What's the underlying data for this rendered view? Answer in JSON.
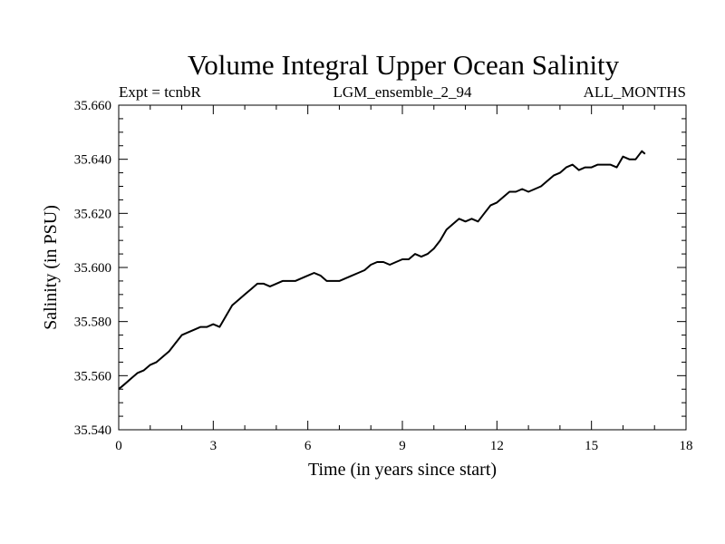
{
  "chart_data": {
    "type": "line",
    "title": "Volume Integral Upper Ocean Salinity",
    "subtitle_left": "Expt = tcnbR",
    "subtitle_center": "LGM_ensemble_2_94",
    "subtitle_right": "ALL_MONTHS",
    "xlabel": "Time (in years since start)",
    "ylabel": "Salinity (in PSU)",
    "xlim": [
      0,
      18
    ],
    "ylim": [
      35.54,
      35.66
    ],
    "xticks": [
      0,
      3,
      6,
      9,
      12,
      15,
      18
    ],
    "yticks": [
      35.54,
      35.56,
      35.58,
      35.6,
      35.62,
      35.64,
      35.66
    ],
    "xtick_labels": [
      "0",
      "3",
      "6",
      "9",
      "12",
      "15",
      "18"
    ],
    "ytick_labels": [
      "35.540",
      "35.560",
      "35.580",
      "35.600",
      "35.620",
      "35.640",
      "35.660"
    ],
    "series": [
      {
        "name": "Salinity",
        "x": [
          0.0,
          0.2,
          0.4,
          0.6,
          0.8,
          1.0,
          1.2,
          1.4,
          1.6,
          1.8,
          2.0,
          2.2,
          2.4,
          2.6,
          2.8,
          3.0,
          3.2,
          3.4,
          3.6,
          3.8,
          4.0,
          4.2,
          4.4,
          4.6,
          4.8,
          5.0,
          5.2,
          5.4,
          5.6,
          5.8,
          6.0,
          6.2,
          6.4,
          6.6,
          6.8,
          7.0,
          7.2,
          7.4,
          7.6,
          7.8,
          8.0,
          8.2,
          8.4,
          8.6,
          8.8,
          9.0,
          9.2,
          9.4,
          9.6,
          9.8,
          10.0,
          10.2,
          10.4,
          10.6,
          10.8,
          11.0,
          11.2,
          11.4,
          11.6,
          11.8,
          12.0,
          12.2,
          12.4,
          12.6,
          12.8,
          13.0,
          13.2,
          13.4,
          13.6,
          13.8,
          14.0,
          14.2,
          14.4,
          14.6,
          14.8,
          15.0,
          15.2,
          15.4,
          15.6,
          15.8,
          16.0,
          16.2,
          16.4,
          16.6,
          16.7
        ],
        "values": [
          35.555,
          35.557,
          35.559,
          35.561,
          35.562,
          35.564,
          35.565,
          35.567,
          35.569,
          35.572,
          35.575,
          35.576,
          35.577,
          35.578,
          35.578,
          35.579,
          35.578,
          35.582,
          35.586,
          35.588,
          35.59,
          35.592,
          35.594,
          35.594,
          35.593,
          35.594,
          35.595,
          35.595,
          35.595,
          35.596,
          35.597,
          35.598,
          35.597,
          35.595,
          35.595,
          35.595,
          35.596,
          35.597,
          35.598,
          35.599,
          35.601,
          35.602,
          35.602,
          35.601,
          35.602,
          35.603,
          35.603,
          35.605,
          35.604,
          35.605,
          35.607,
          35.61,
          35.614,
          35.616,
          35.618,
          35.617,
          35.618,
          35.617,
          35.62,
          35.623,
          35.624,
          35.626,
          35.628,
          35.628,
          35.629,
          35.628,
          35.629,
          35.63,
          35.632,
          35.634,
          35.635,
          35.637,
          35.638,
          35.636,
          35.637,
          35.637,
          35.638,
          35.638,
          35.638,
          35.637,
          35.641,
          35.64,
          35.64,
          35.643,
          35.642
        ]
      }
    ]
  }
}
